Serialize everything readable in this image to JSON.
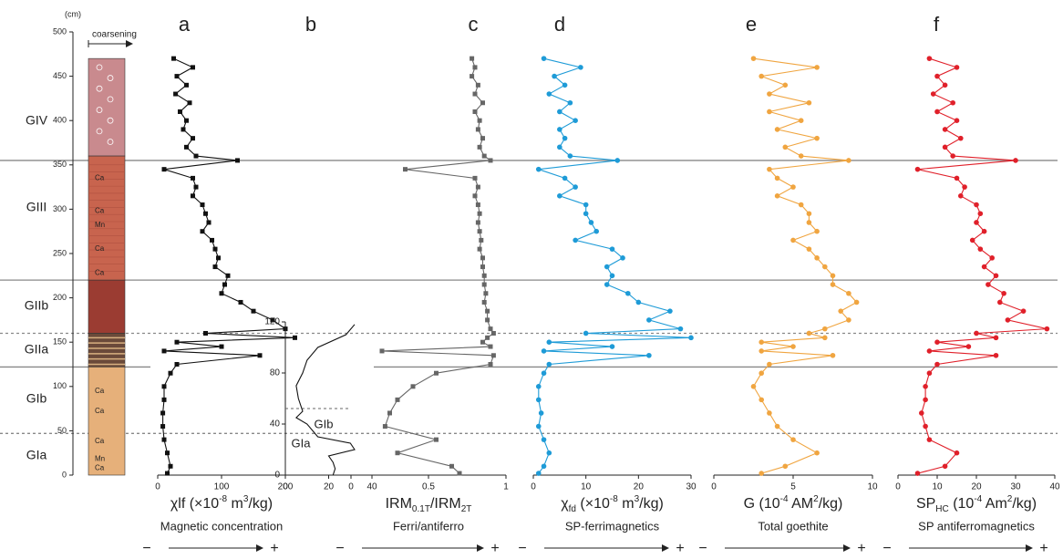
{
  "chart_data": [
    {
      "type": "section",
      "ylabel": "(cm)",
      "ylim": [
        0,
        500
      ],
      "yticks": [
        0,
        50,
        100,
        150,
        200,
        250,
        300,
        350,
        400,
        450,
        500
      ],
      "column_title": "coarsening",
      "units": [
        "GIV",
        "GIII",
        "GIIb",
        "GIIa",
        "GIb",
        "GIa"
      ],
      "column_labels": [
        "Ca",
        "Ca",
        "Mn",
        "Ca",
        "Ca",
        "Ca",
        "Ca",
        "Ca",
        "Mn",
        "Ca"
      ],
      "boundaries": [
        {
          "depth": 355,
          "style": "solid"
        },
        {
          "depth": 220,
          "style": "solid"
        },
        {
          "depth": 160,
          "style": "dotted"
        },
        {
          "depth": 122,
          "style": "solid"
        },
        {
          "depth": 47,
          "style": "dotted"
        }
      ]
    },
    {
      "type": "line",
      "label": "a",
      "marker": "square",
      "color": "#111111",
      "xlabel": [
        {
          "t": "χlf (×10"
        },
        {
          "sup": "-8"
        },
        {
          "t": " m"
        },
        {
          "sup": "3"
        },
        {
          "t": "/kg)"
        }
      ],
      "description": "Magnetic concentration",
      "scale_low": "−",
      "scale_high": "+",
      "xlim": [
        0,
        200
      ],
      "xticks": [
        0,
        100,
        200
      ],
      "ylim": [
        0,
        500
      ],
      "depth": [
        470,
        460,
        450,
        440,
        430,
        420,
        410,
        400,
        390,
        380,
        370,
        360,
        355,
        345,
        335,
        325,
        315,
        305,
        295,
        285,
        275,
        265,
        255,
        245,
        235,
        225,
        215,
        205,
        195,
        185,
        175,
        165,
        160,
        155,
        150,
        145,
        140,
        135,
        125,
        115,
        100,
        85,
        70,
        55,
        40,
        25,
        10,
        2
      ],
      "values": [
        25,
        55,
        30,
        45,
        28,
        50,
        35,
        45,
        40,
        55,
        45,
        60,
        125,
        10,
        55,
        60,
        55,
        70,
        75,
        80,
        70,
        85,
        90,
        95,
        90,
        110,
        105,
        100,
        130,
        150,
        180,
        200,
        75,
        215,
        30,
        100,
        10,
        160,
        30,
        20,
        10,
        10,
        8,
        8,
        10,
        15,
        20,
        15
      ]
    },
    {
      "type": "line",
      "label": "b",
      "inset": true,
      "marker": "none",
      "color": "#111111",
      "xlim": [
        0,
        40
      ],
      "xticks": [
        0,
        20,
        40
      ],
      "ylim": [
        0,
        120
      ],
      "yticks": [
        0,
        40,
        80,
        120
      ],
      "notes": [
        "GIb",
        "GIa"
      ],
      "depth": [
        118,
        110,
        100,
        90,
        80,
        70,
        60,
        50,
        45,
        40,
        30,
        25,
        20,
        15,
        10,
        5,
        0
      ],
      "values": [
        32,
        28,
        15,
        10,
        8,
        5,
        6,
        8,
        5,
        10,
        15,
        30,
        32,
        20,
        22,
        23,
        22
      ]
    },
    {
      "type": "line",
      "label": "c",
      "marker": "square",
      "color": "#666666",
      "xlabel": [
        {
          "t": "IRM"
        },
        {
          "sub": "0.1T"
        },
        {
          "t": "/IRM"
        },
        {
          "sub": "2T"
        }
      ],
      "description": "Ferri/antiferro",
      "scale_low": "−",
      "scale_high": "+",
      "xlim": [
        0,
        1
      ],
      "xticks": [
        0,
        0.5,
        1
      ],
      "ylim": [
        0,
        500
      ],
      "depth": [
        470,
        460,
        450,
        440,
        430,
        420,
        410,
        400,
        390,
        380,
        370,
        360,
        355,
        345,
        335,
        325,
        315,
        305,
        295,
        285,
        275,
        265,
        255,
        245,
        235,
        225,
        215,
        205,
        195,
        185,
        175,
        165,
        160,
        155,
        150,
        145,
        140,
        135,
        125,
        115,
        100,
        85,
        70,
        55,
        40,
        25,
        10,
        2
      ],
      "values": [
        0.78,
        0.8,
        0.78,
        0.82,
        0.8,
        0.85,
        0.8,
        0.83,
        0.82,
        0.85,
        0.83,
        0.86,
        0.9,
        0.35,
        0.8,
        0.82,
        0.8,
        0.82,
        0.83,
        0.82,
        0.83,
        0.84,
        0.83,
        0.85,
        0.85,
        0.86,
        0.86,
        0.87,
        0.86,
        0.88,
        0.88,
        0.9,
        0.92,
        0.88,
        0.85,
        0.9,
        0.2,
        0.92,
        0.9,
        0.55,
        0.4,
        0.3,
        0.25,
        0.22,
        0.55,
        0.3,
        0.65,
        0.7
      ]
    },
    {
      "type": "line",
      "label": "d",
      "marker": "circle",
      "color": "#1e9bd7",
      "xlabel": [
        {
          "t": "χ"
        },
        {
          "sub": "fd"
        },
        {
          "t": " (×10"
        },
        {
          "sup": "-8"
        },
        {
          "t": " m"
        },
        {
          "sup": "3"
        },
        {
          "t": "/kg)"
        }
      ],
      "description": "SP-ferrimagnetics",
      "scale_low": "−",
      "scale_high": "+",
      "xlim": [
        0,
        30
      ],
      "xticks": [
        0,
        10,
        20,
        30
      ],
      "ylim": [
        0,
        500
      ],
      "depth": [
        470,
        460,
        450,
        440,
        430,
        420,
        410,
        400,
        390,
        380,
        370,
        360,
        355,
        345,
        335,
        325,
        315,
        305,
        295,
        285,
        275,
        265,
        255,
        245,
        235,
        225,
        215,
        205,
        195,
        185,
        175,
        165,
        160,
        155,
        150,
        145,
        140,
        135,
        125,
        115,
        100,
        85,
        70,
        55,
        40,
        25,
        10,
        2
      ],
      "values": [
        2,
        9,
        4,
        6,
        3,
        7,
        5,
        8,
        5,
        6,
        5,
        7,
        16,
        1,
        6,
        8,
        5,
        10,
        10,
        11,
        12,
        8,
        15,
        17,
        14,
        15,
        14,
        18,
        20,
        26,
        22,
        28,
        10,
        30,
        3,
        15,
        2,
        22,
        3,
        2,
        1,
        1,
        1.5,
        1,
        2,
        3,
        2,
        1
      ]
    },
    {
      "type": "line",
      "label": "e",
      "marker": "circle",
      "color": "#f0a540",
      "xlabel": [
        {
          "t": "G (10"
        },
        {
          "sup": "-4"
        },
        {
          "t": " AM"
        },
        {
          "sup": "2"
        },
        {
          "t": "/kg)"
        }
      ],
      "description": "Total goethite",
      "scale_low": "−",
      "scale_high": "+",
      "xlim": [
        0,
        10
      ],
      "xticks": [
        0,
        5,
        10
      ],
      "ylim": [
        0,
        500
      ],
      "depth": [
        470,
        460,
        450,
        440,
        430,
        420,
        410,
        400,
        390,
        380,
        370,
        360,
        355,
        345,
        335,
        325,
        315,
        305,
        295,
        285,
        275,
        265,
        255,
        245,
        235,
        225,
        215,
        205,
        195,
        185,
        175,
        165,
        160,
        155,
        150,
        145,
        140,
        135,
        125,
        115,
        100,
        85,
        70,
        55,
        40,
        25,
        10,
        2
      ],
      "values": [
        2.5,
        6.5,
        3,
        4.5,
        3.5,
        6,
        3.5,
        5.5,
        4,
        6.5,
        4.5,
        5.5,
        8.5,
        3.5,
        4,
        5,
        4,
        5.5,
        6,
        6,
        6.5,
        5,
        6,
        6.5,
        7,
        7.5,
        7.5,
        8.5,
        9,
        8,
        8.5,
        7,
        6,
        7,
        3,
        5,
        3,
        7.5,
        3.5,
        3,
        2.5,
        3,
        3.5,
        4,
        5,
        6.5,
        4.5,
        3
      ]
    },
    {
      "type": "line",
      "label": "f",
      "marker": "circle",
      "color": "#e0202a",
      "xlabel": [
        {
          "t": "SP"
        },
        {
          "sub": "HC"
        },
        {
          "t": " (10"
        },
        {
          "sup": "-4"
        },
        {
          "t": " Am"
        },
        {
          "sup": "2"
        },
        {
          "t": "/kg)"
        }
      ],
      "description": "SP antiferromagnetics",
      "scale_low": "−",
      "scale_high": "+",
      "xlim": [
        0,
        40
      ],
      "xticks": [
        0,
        10,
        20,
        30,
        40
      ],
      "ylim": [
        0,
        500
      ],
      "depth": [
        470,
        460,
        450,
        440,
        430,
        420,
        410,
        400,
        390,
        380,
        370,
        360,
        355,
        345,
        335,
        325,
        315,
        305,
        295,
        285,
        275,
        265,
        255,
        245,
        235,
        225,
        215,
        205,
        195,
        185,
        175,
        165,
        160,
        155,
        150,
        145,
        140,
        135,
        125,
        115,
        100,
        85,
        70,
        55,
        40,
        25,
        10,
        2
      ],
      "values": [
        8,
        15,
        10,
        12,
        9,
        14,
        10,
        15,
        12,
        16,
        12,
        14,
        30,
        5,
        15,
        17,
        16,
        20,
        21,
        20,
        22,
        19,
        21,
        24,
        22,
        25,
        23,
        27,
        26,
        32,
        28,
        38,
        20,
        25,
        10,
        18,
        8,
        25,
        10,
        8,
        7,
        7,
        6,
        7,
        8,
        15,
        12,
        5
      ]
    }
  ]
}
